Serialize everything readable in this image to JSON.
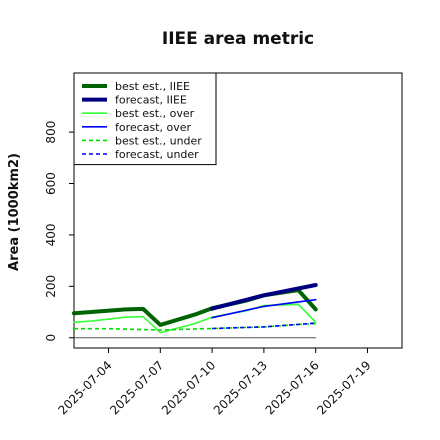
{
  "chart_data": {
    "type": "line",
    "title": "IIEE area metric",
    "xlabel": "",
    "ylabel": "Area (1000km2)",
    "x_ticks": [
      "2025-07-04",
      "2025-07-07",
      "2025-07-10",
      "2025-07-13",
      "2025-07-16",
      "2025-07-19"
    ],
    "highlight_tick": "2025-07-10",
    "y_ticks": [
      0,
      200,
      400,
      600,
      800
    ],
    "xlim": [
      "2025-07-02",
      "2025-07-21"
    ],
    "ylim": [
      -40,
      1030
    ],
    "legend_position": "top-left",
    "grid": false,
    "series": [
      {
        "name": "best est., IIEE",
        "color": "#006400",
        "style": "solid",
        "width": "thick",
        "x": [
          "2025-07-02",
          "2025-07-03",
          "2025-07-05",
          "2025-07-06",
          "2025-07-07",
          "2025-07-09",
          "2025-07-10",
          "2025-07-12",
          "2025-07-13",
          "2025-07-15",
          "2025-07-16"
        ],
        "y": [
          95,
          100,
          110,
          112,
          50,
          90,
          115,
          145,
          165,
          185,
          110
        ]
      },
      {
        "name": "forecast, IIEE",
        "color": "#00007f",
        "style": "solid",
        "width": "thick",
        "x": [
          "2025-07-10",
          "2025-07-13",
          "2025-07-16"
        ],
        "y": [
          113,
          165,
          205
        ]
      },
      {
        "name": "best est., over",
        "color": "#33ff33",
        "style": "solid",
        "width": "normal",
        "x": [
          "2025-07-02",
          "2025-07-03",
          "2025-07-05",
          "2025-07-06",
          "2025-07-07",
          "2025-07-09",
          "2025-07-10",
          "2025-07-12",
          "2025-07-13",
          "2025-07-15",
          "2025-07-16"
        ],
        "y": [
          60,
          65,
          80,
          82,
          20,
          55,
          80,
          105,
          125,
          130,
          60
        ]
      },
      {
        "name": "forecast, over",
        "color": "#0000ff",
        "style": "solid",
        "width": "normal",
        "x": [
          "2025-07-10",
          "2025-07-13",
          "2025-07-16"
        ],
        "y": [
          78,
          122,
          148
        ]
      },
      {
        "name": "best est., under",
        "color": "#00dd00",
        "style": "dashed",
        "width": "normal",
        "x": [
          "2025-07-02",
          "2025-07-04",
          "2025-07-07",
          "2025-07-10",
          "2025-07-13",
          "2025-07-15",
          "2025-07-16"
        ],
        "y": [
          35,
          35,
          30,
          36,
          42,
          52,
          55
        ]
      },
      {
        "name": "forecast, under",
        "color": "#0000ff",
        "style": "dashed",
        "width": "normal",
        "x": [
          "2025-07-10",
          "2025-07-13",
          "2025-07-16"
        ],
        "y": [
          36,
          42,
          57
        ]
      },
      {
        "name": "",
        "color": "#555555",
        "style": "solid",
        "width": "thin",
        "x": [
          "2025-07-02",
          "2025-07-16"
        ],
        "y": [
          0,
          0
        ]
      }
    ]
  }
}
